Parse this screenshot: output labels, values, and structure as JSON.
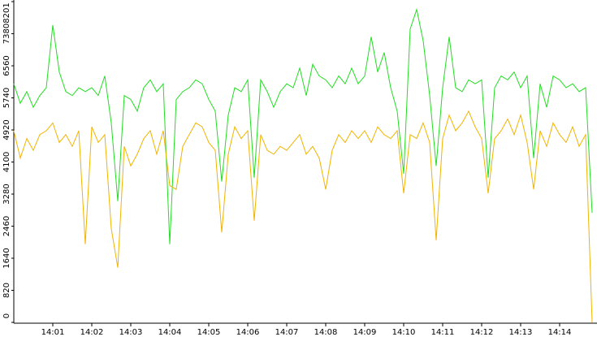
{
  "chart_data": {
    "type": "line",
    "categories": [
      null,
      null,
      null,
      null,
      null,
      null,
      "14:01",
      null,
      null,
      null,
      null,
      null,
      "14:02",
      null,
      null,
      null,
      null,
      null,
      "14:03",
      null,
      null,
      null,
      null,
      null,
      "14:04",
      null,
      null,
      null,
      null,
      null,
      "14:05",
      null,
      null,
      null,
      null,
      null,
      "14:06",
      null,
      null,
      null,
      null,
      null,
      "14:07",
      null,
      null,
      null,
      null,
      null,
      "14:08",
      null,
      null,
      null,
      null,
      null,
      "14:09",
      null,
      null,
      null,
      null,
      null,
      "14:10",
      null,
      null,
      null,
      null,
      null,
      "14:11",
      null,
      null,
      null,
      null,
      null,
      "14:12",
      null,
      null,
      null,
      null,
      null,
      "14:13",
      null,
      null,
      null,
      null,
      null,
      "14:14",
      null,
      null,
      null,
      null,
      null
    ],
    "series": [
      {
        "color": "#22dd22",
        "values": [
          6100,
          5600,
          5900,
          5500,
          5800,
          6000,
          7600,
          6400,
          5900,
          5800,
          6000,
          5900,
          6000,
          5800,
          6300,
          5100,
          3100,
          5800,
          5700,
          5400,
          6000,
          6200,
          5900,
          6100,
          2000,
          5700,
          5900,
          6000,
          6200,
          6100,
          5700,
          5400,
          3600,
          5300,
          6000,
          5900,
          6200,
          3700,
          6200,
          5900,
          5500,
          5900,
          6100,
          6000,
          6500,
          5800,
          6600,
          6300,
          6200,
          6000,
          6300,
          6100,
          6500,
          6100,
          6300,
          7300,
          6400,
          6900,
          6000,
          5400,
          3800,
          7500,
          8000,
          7200,
          5800,
          4000,
          6000,
          7300,
          6000,
          5900,
          6200,
          6100,
          6200,
          3700,
          6000,
          6300,
          6200,
          6400,
          6000,
          6300,
          4200,
          6100,
          5500,
          6300,
          6200,
          6000,
          6100,
          5900,
          6000,
          2800
        ]
      },
      {
        "color": "#f0b400",
        "values": [
          4900,
          4200,
          4700,
          4400,
          4800,
          4900,
          5100,
          4600,
          4800,
          4500,
          4900,
          2000,
          5000,
          4600,
          4800,
          2400,
          1400,
          4500,
          4000,
          4300,
          4700,
          4900,
          4300,
          4900,
          3500,
          3400,
          4500,
          4800,
          5100,
          5000,
          4600,
          4400,
          2300,
          4300,
          5000,
          4700,
          4900,
          2600,
          4800,
          4400,
          4300,
          4500,
          4400,
          4600,
          4800,
          4300,
          4500,
          4200,
          3400,
          4400,
          4800,
          4600,
          4900,
          4700,
          4900,
          4600,
          5000,
          4800,
          4700,
          4900,
          3300,
          4800,
          4700,
          5100,
          4600,
          2100,
          4700,
          5300,
          4900,
          5100,
          5400,
          5000,
          4700,
          3300,
          4700,
          4900,
          5200,
          4800,
          5300,
          4600,
          3400,
          4900,
          4500,
          5100,
          4800,
          4600,
          5000,
          4500,
          4800,
          0
        ]
      }
    ],
    "ylim": [
      0,
      8201
    ],
    "yticks": [
      0,
      820,
      1640,
      2460,
      3280,
      4100,
      4920,
      5740,
      6560,
      7380,
      8201
    ]
  }
}
